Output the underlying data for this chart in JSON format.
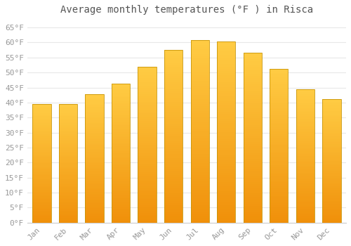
{
  "title": "Average monthly temperatures (°F ) in Risca",
  "months": [
    "Jan",
    "Feb",
    "Mar",
    "Apr",
    "May",
    "Jun",
    "Jul",
    "Aug",
    "Sep",
    "Oct",
    "Nov",
    "Dec"
  ],
  "values": [
    39.5,
    39.5,
    42.8,
    46.4,
    52.0,
    57.5,
    60.8,
    60.3,
    56.7,
    51.2,
    44.5,
    41.2
  ],
  "bar_color_top": "#FFCC44",
  "bar_color_bottom": "#F0900A",
  "bar_edge_color": "#C8960A",
  "background_color": "#FFFFFF",
  "grid_color": "#E8E8E8",
  "ytick_labels": [
    "0°F",
    "5°F",
    "10°F",
    "15°F",
    "20°F",
    "25°F",
    "30°F",
    "35°F",
    "40°F",
    "45°F",
    "50°F",
    "55°F",
    "60°F",
    "65°F"
  ],
  "ytick_values": [
    0,
    5,
    10,
    15,
    20,
    25,
    30,
    35,
    40,
    45,
    50,
    55,
    60,
    65
  ],
  "ylim": [
    0,
    68
  ],
  "title_fontsize": 10,
  "tick_fontsize": 8,
  "tick_color": "#999999",
  "font_family": "monospace",
  "bar_width": 0.7
}
